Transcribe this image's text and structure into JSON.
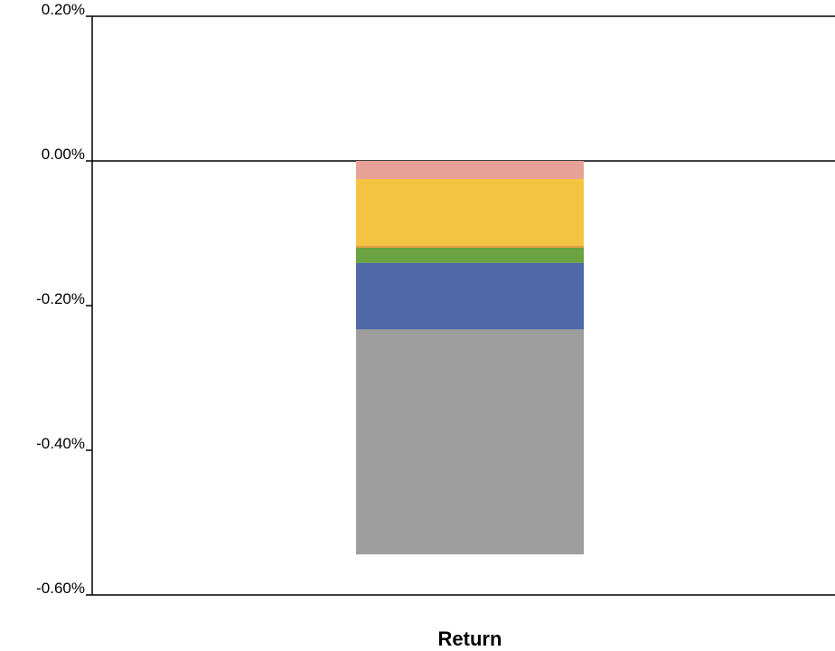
{
  "chart_data": {
    "type": "bar",
    "stacked": true,
    "categories": [
      "Return"
    ],
    "xlabel": "Return",
    "ylabel": "",
    "title": "",
    "ylim": [
      -0.6,
      0.2
    ],
    "yticks": [
      0.2,
      0.0,
      -0.2,
      -0.4,
      -0.6
    ],
    "ytick_labels": [
      "0.20%",
      "0.00%",
      "-0.20%",
      "-0.40%",
      "-0.60%"
    ],
    "grid": false,
    "series": [
      {
        "values": [
          -0.025
        ],
        "color": "#e8a197"
      },
      {
        "values": [
          -0.092
        ],
        "color": "#f4c443"
      },
      {
        "values": [
          -0.003
        ],
        "color": "#e8a040"
      },
      {
        "values": [
          -0.021
        ],
        "color": "#6aa33f"
      },
      {
        "values": [
          -0.092
        ],
        "color": "#5068a8"
      },
      {
        "values": [
          -0.311
        ],
        "color": "#9e9e9e"
      }
    ]
  }
}
